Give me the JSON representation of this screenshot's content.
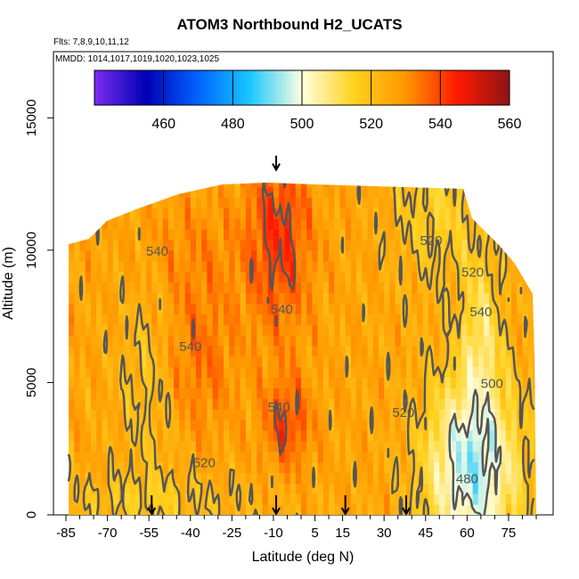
{
  "chart_data": {
    "type": "heatmap",
    "title": "ATOM3 Northbound H2_UCATS",
    "subtitle_flights": "Flts: 7,8,9,10,11,12",
    "subtitle_dates": "MMDD: 1014,1017,1019,1020,1023,1025",
    "xlabel": "Latitude (deg N)",
    "ylabel": "Altitude (m)",
    "xlim": [
      -85,
      85
    ],
    "ylim": [
      0,
      17500
    ],
    "xticks": [
      -85,
      -70,
      -55,
      -40,
      -25,
      -10,
      5,
      15,
      30,
      45,
      60,
      75
    ],
    "yticks": [
      0,
      5000,
      10000,
      15000
    ],
    "colorbar": {
      "min": 440,
      "max": 560,
      "ticks": [
        460,
        480,
        500,
        520,
        540,
        560
      ],
      "colors": [
        "#7a2ef0",
        "#0000b4",
        "#0064ff",
        "#19c8ff",
        "#ffffe0",
        "#ffd21e",
        "#ff9600",
        "#ff1900",
        "#8c1414"
      ]
    },
    "contour_labels": [
      {
        "text": "520",
        "lat": 47,
        "alt": 10200
      },
      {
        "text": "520",
        "lat": 62,
        "alt": 9000
      },
      {
        "text": "540",
        "lat": -52,
        "alt": 9800
      },
      {
        "text": "540",
        "lat": -7,
        "alt": 7600
      },
      {
        "text": "540",
        "lat": -40,
        "alt": 6200
      },
      {
        "text": "540",
        "lat": 65,
        "alt": 7500
      },
      {
        "text": "540",
        "lat": -8,
        "alt": 3900
      },
      {
        "text": "500",
        "lat": 69,
        "alt": 4800
      },
      {
        "text": "520",
        "lat": 37,
        "alt": 3700
      },
      {
        "text": "520",
        "lat": -35,
        "alt": 1800
      },
      {
        "text": "480",
        "lat": 60,
        "alt": 1200
      }
    ],
    "arrow_markers_lat": [
      -54,
      -9,
      16,
      38
    ],
    "summit_arrow": {
      "lat": -9,
      "alt": 13100
    }
  }
}
